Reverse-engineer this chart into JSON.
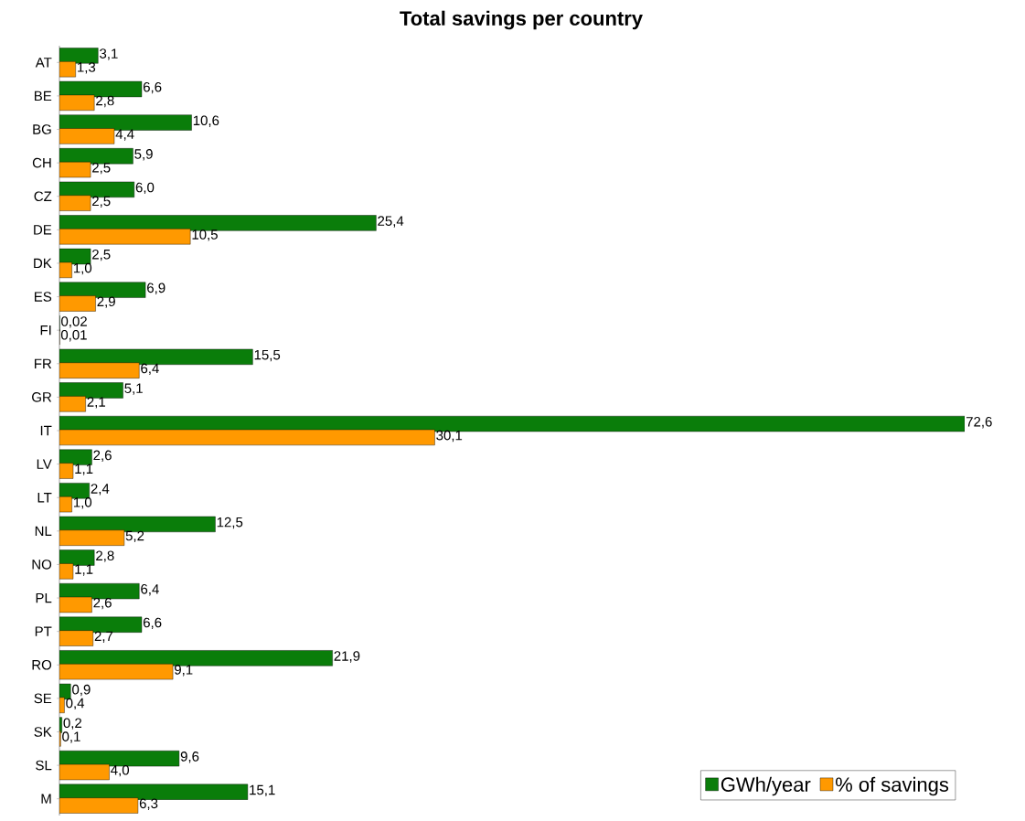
{
  "chart_data": {
    "type": "bar",
    "orientation": "horizontal",
    "title": "Total savings per country",
    "categories": [
      "AT",
      "BE",
      "BG",
      "CH",
      "CZ",
      "DE",
      "DK",
      "ES",
      "FI",
      "FR",
      "GR",
      "IT",
      "LV",
      "LT",
      "NL",
      "NO",
      "PL",
      "PT",
      "RO",
      "SE",
      "SK",
      "SL",
      "M"
    ],
    "series": [
      {
        "name": "GWh/year",
        "color": "#0a7d0a",
        "values": [
          3.1,
          6.6,
          10.6,
          5.9,
          6.0,
          25.4,
          2.5,
          6.9,
          0.02,
          15.5,
          5.1,
          72.6,
          2.6,
          2.4,
          12.5,
          2.8,
          6.4,
          6.6,
          21.9,
          0.9,
          0.2,
          9.6,
          15.1
        ],
        "value_labels": [
          "3,1",
          "6,6",
          "10,6",
          "5,9",
          "6,0",
          "25,4",
          "2,5",
          "6,9",
          "0,02",
          "15,5",
          "5,1",
          "72,6",
          "2,6",
          "2,4",
          "12,5",
          "2,8",
          "6,4",
          "6,6",
          "21,9",
          "0,9",
          "0,2",
          "9,6",
          "15,1"
        ]
      },
      {
        "name": "% of savings",
        "color": "#ff9900",
        "values": [
          1.3,
          2.8,
          4.4,
          2.5,
          2.5,
          10.5,
          1.0,
          2.9,
          0.01,
          6.4,
          2.1,
          30.1,
          1.1,
          1.0,
          5.2,
          1.1,
          2.6,
          2.7,
          9.1,
          0.4,
          0.1,
          4.0,
          6.3
        ],
        "value_labels": [
          "1,3",
          "2,8",
          "4,4",
          "2,5",
          "2,5",
          "10,5",
          "1,0",
          "2,9",
          "0,01",
          "6,4",
          "2,1",
          "30,1",
          "1,1",
          "1,0",
          "5,2",
          "1,1",
          "2,6",
          "2,7",
          "9,1",
          "0,4",
          "0,1",
          "4,0",
          "6,3"
        ]
      }
    ],
    "legend": "bottom right",
    "tick_labels": "y"
  }
}
